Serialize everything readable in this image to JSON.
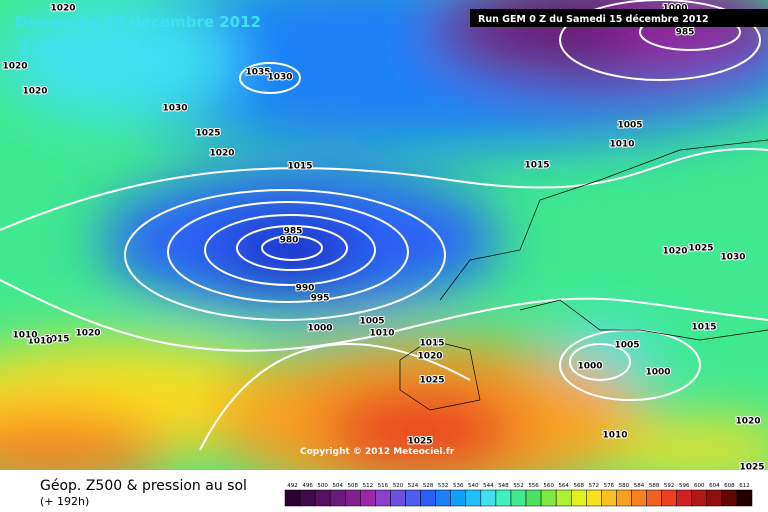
{
  "header": {
    "title": "Dimanche 23 decembre 2012",
    "time": "1:00 locale",
    "run": "Run GEM 0 Z du Samedi 15 décembre 2012"
  },
  "isobar_labels": [
    1020,
    1020,
    1020,
    1035,
    1030,
    1030,
    1025,
    1020,
    1015,
    985,
    980,
    990,
    995,
    1000,
    1005,
    1010,
    1015,
    1020,
    1025,
    1025,
    1015,
    1005,
    1010,
    985,
    1000,
    1020,
    1025,
    1030,
    1015,
    1005,
    1000,
    1000,
    1010,
    1020,
    1025,
    1020,
    1015,
    1010,
    1010
  ],
  "copyright": "Copyright © 2012 Meteociel.fr",
  "footer": {
    "title": "Géop. Z500 & pression au sol",
    "lead": "(+ 192h)"
  },
  "legend": {
    "values": [
      492,
      496,
      500,
      504,
      508,
      512,
      516,
      520,
      524,
      528,
      532,
      536,
      540,
      544,
      548,
      552,
      556,
      560,
      564,
      568,
      572,
      576,
      580,
      584,
      588,
      592,
      596,
      600,
      604,
      608,
      612
    ],
    "colors": [
      "#2a0030",
      "#3e0a4a",
      "#551060",
      "#6a1a78",
      "#80208e",
      "#9a28a8",
      "#8a40c8",
      "#6a50e0",
      "#4a5ef0",
      "#2a60f8",
      "#1a80f8",
      "#10a0f8",
      "#20c0f8",
      "#40e0f0",
      "#40f0c0",
      "#40e890",
      "#50e060",
      "#80e840",
      "#b0f030",
      "#e0f020",
      "#f8e020",
      "#f8c020",
      "#f8a020",
      "#f88020",
      "#f06020",
      "#e84020",
      "#d02020",
      "#b01818",
      "#901010",
      "#600808",
      "#200000"
    ]
  }
}
